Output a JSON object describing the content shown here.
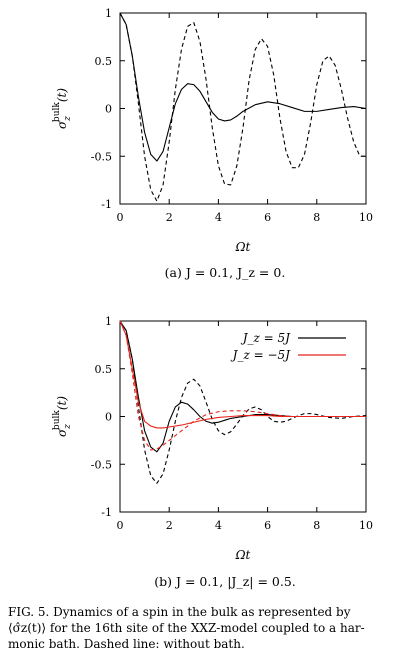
{
  "chart_data": [
    {
      "type": "line",
      "xlabel": "Ωt",
      "ylabel": "σ_z^bulk(t)",
      "xlim": [
        0,
        10
      ],
      "ylim": [
        -1,
        1
      ],
      "xticks": [
        "0",
        "2",
        "4",
        "6",
        "8",
        "10"
      ],
      "yticks": [
        "1",
        "0.5",
        "0",
        "-0.5",
        "-1"
      ],
      "grid": false,
      "subcaption": "(a) J = 0.1, J_z = 0.",
      "series": [
        {
          "style": "solid",
          "color": "#000000",
          "x": [
            0,
            0.25,
            0.5,
            0.75,
            1.0,
            1.25,
            1.5,
            1.75,
            2.0,
            2.25,
            2.5,
            2.75,
            3.0,
            3.25,
            3.5,
            3.75,
            4.0,
            4.25,
            4.5,
            4.75,
            5.0,
            5.5,
            6.0,
            6.5,
            7.0,
            7.5,
            8.0,
            8.5,
            9.0,
            9.5,
            10.0
          ],
          "y": [
            1.0,
            0.88,
            0.55,
            0.12,
            -0.25,
            -0.48,
            -0.55,
            -0.45,
            -0.2,
            0.05,
            0.2,
            0.26,
            0.25,
            0.18,
            0.07,
            -0.04,
            -0.11,
            -0.13,
            -0.12,
            -0.08,
            -0.03,
            0.04,
            0.07,
            0.05,
            0.01,
            -0.03,
            -0.03,
            -0.01,
            0.01,
            0.02,
            0.0
          ]
        },
        {
          "style": "dashed",
          "color": "#000000",
          "x": [
            0,
            0.25,
            0.5,
            0.75,
            1.0,
            1.25,
            1.5,
            1.75,
            2.0,
            2.25,
            2.5,
            2.75,
            3.0,
            3.25,
            3.5,
            3.75,
            4.0,
            4.25,
            4.5,
            4.75,
            5.0,
            5.25,
            5.5,
            5.75,
            6.0,
            6.25,
            6.5,
            6.75,
            7.0,
            7.25,
            7.5,
            7.75,
            8.0,
            8.25,
            8.5,
            8.75,
            9.0,
            9.25,
            9.5,
            9.75,
            10.0
          ],
          "y": [
            1.0,
            0.88,
            0.55,
            0.05,
            -0.5,
            -0.85,
            -0.97,
            -0.8,
            -0.35,
            0.2,
            0.62,
            0.86,
            0.9,
            0.7,
            0.3,
            -0.2,
            -0.6,
            -0.79,
            -0.8,
            -0.6,
            -0.2,
            0.3,
            0.62,
            0.73,
            0.65,
            0.35,
            -0.1,
            -0.45,
            -0.62,
            -0.62,
            -0.48,
            -0.15,
            0.25,
            0.5,
            0.55,
            0.45,
            0.2,
            -0.1,
            -0.35,
            -0.5,
            -0.5
          ]
        }
      ]
    },
    {
      "type": "line",
      "xlabel": "Ωt",
      "ylabel": "σ_z^bulk(t)",
      "xlim": [
        0,
        10
      ],
      "ylim": [
        -1,
        1
      ],
      "xticks": [
        "0",
        "2",
        "4",
        "6",
        "8",
        "10"
      ],
      "yticks": [
        "1",
        "0.5",
        "0",
        "-0.5",
        "-1"
      ],
      "grid": false,
      "legend": {
        "placement": "top-right",
        "entries": [
          "J_z = 5J",
          "J_z = −5J"
        ]
      },
      "subcaption": "(b) J = 0.1, |J_z| = 0.5.",
      "series": [
        {
          "name": "J_z = 5J",
          "style": "solid",
          "color": "#000000",
          "x": [
            0,
            0.25,
            0.5,
            0.75,
            1.0,
            1.25,
            1.5,
            1.75,
            2.0,
            2.25,
            2.5,
            2.75,
            3.0,
            3.25,
            3.5,
            3.75,
            4.0,
            4.25,
            4.5,
            5.0,
            5.5,
            6.0,
            6.5,
            7.0,
            7.5,
            8.0,
            8.5,
            9.0,
            9.5,
            10.0
          ],
          "y": [
            1.0,
            0.9,
            0.6,
            0.2,
            -0.15,
            -0.32,
            -0.37,
            -0.28,
            -0.05,
            0.1,
            0.15,
            0.13,
            0.07,
            0.0,
            -0.05,
            -0.07,
            -0.06,
            -0.04,
            -0.02,
            0.0,
            0.02,
            0.02,
            0.01,
            0.0,
            0.0,
            0.0,
            0.0,
            0.0,
            0.0,
            0.0
          ]
        },
        {
          "name": "J_z = 5J",
          "style": "dashed",
          "color": "#000000",
          "x": [
            0,
            0.25,
            0.5,
            0.75,
            1.0,
            1.25,
            1.5,
            1.75,
            2.0,
            2.25,
            2.5,
            2.75,
            3.0,
            3.25,
            3.5,
            3.75,
            4.0,
            4.25,
            4.5,
            4.75,
            5.0,
            5.25,
            5.5,
            5.75,
            6.0,
            6.25,
            6.5,
            6.75,
            7.0,
            7.25,
            7.5,
            7.75,
            8.0,
            8.5,
            9.0,
            9.5,
            10.0
          ],
          "y": [
            1.0,
            0.9,
            0.6,
            0.1,
            -0.35,
            -0.62,
            -0.7,
            -0.6,
            -0.35,
            -0.05,
            0.2,
            0.35,
            0.39,
            0.32,
            0.15,
            -0.03,
            -0.15,
            -0.19,
            -0.16,
            -0.08,
            0.01,
            0.08,
            0.1,
            0.07,
            0.0,
            -0.05,
            -0.06,
            -0.05,
            -0.02,
            0.01,
            0.03,
            0.03,
            0.02,
            -0.01,
            -0.02,
            0.0,
            0.01
          ]
        },
        {
          "name": "J_z = −5J",
          "style": "solid",
          "color": "#e8231b",
          "x": [
            0,
            0.25,
            0.5,
            0.75,
            1.0,
            1.25,
            1.5,
            1.75,
            2.0,
            2.5,
            3.0,
            3.5,
            4.0,
            4.5,
            5.0,
            5.5,
            6.0,
            6.5,
            7.0,
            8.0,
            9.0,
            10.0
          ],
          "y": [
            1.0,
            0.85,
            0.5,
            0.15,
            -0.05,
            -0.1,
            -0.12,
            -0.12,
            -0.11,
            -0.09,
            -0.06,
            -0.03,
            -0.01,
            0.0,
            0.01,
            0.01,
            0.01,
            0.0,
            0.0,
            0.0,
            0.0,
            0.0
          ]
        },
        {
          "name": "J_z = −5J",
          "style": "dashed",
          "color": "#e8231b",
          "x": [
            0,
            0.25,
            0.5,
            0.75,
            1.0,
            1.25,
            1.5,
            1.75,
            2.0,
            2.5,
            3.0,
            3.5,
            4.0,
            4.5,
            5.0,
            5.5,
            6.0,
            6.5,
            7.0,
            8.0,
            9.0,
            10.0
          ],
          "y": [
            1.0,
            0.85,
            0.45,
            0.0,
            -0.25,
            -0.35,
            -0.34,
            -0.3,
            -0.25,
            -0.15,
            -0.05,
            0.02,
            0.05,
            0.06,
            0.06,
            0.05,
            0.03,
            0.01,
            0.0,
            0.0,
            0.0,
            0.0
          ]
        }
      ]
    }
  ],
  "caption": {
    "line1": "FIG. 5.  Dynamics of a spin in the bulk as represented by",
    "line2": "⟨σ̂z(t)⟩ for the 16th site of the XXZ-model coupled to a har-",
    "line3": "monic bath. Dashed line: without bath."
  }
}
